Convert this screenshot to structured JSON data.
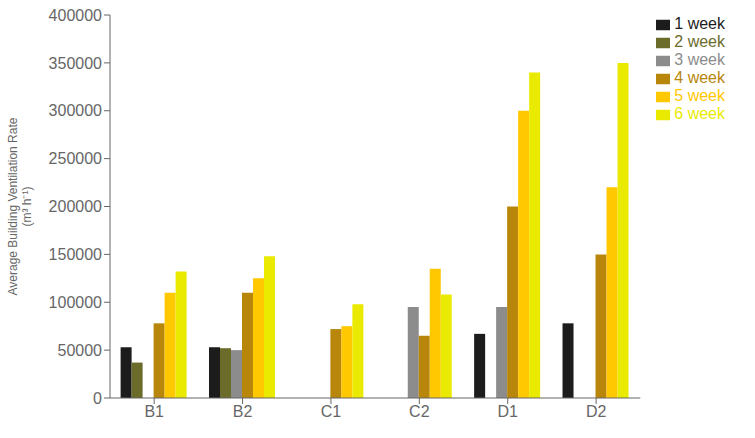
{
  "chart_data": {
    "type": "bar",
    "categories": [
      "B1",
      "B2",
      "C1",
      "C2",
      "D1",
      "D2"
    ],
    "series": [
      {
        "name": "1 week",
        "color": "#1c1c1c",
        "values": [
          53000,
          53000,
          0,
          0,
          67000,
          78000
        ]
      },
      {
        "name": "2 week",
        "color": "#6b6b2a",
        "values": [
          37000,
          52000,
          0,
          0,
          0,
          0
        ]
      },
      {
        "name": "3 week",
        "color": "#8c8c8c",
        "values": [
          0,
          50000,
          0,
          95000,
          95000,
          0
        ]
      },
      {
        "name": "4 week",
        "color": "#b8860b",
        "values": [
          78000,
          110000,
          72000,
          65000,
          200000,
          150000
        ]
      },
      {
        "name": "5 week",
        "color": "#ffc800",
        "values": [
          110000,
          125000,
          75000,
          135000,
          300000,
          220000
        ]
      },
      {
        "name": "6 week",
        "color": "#eaea00",
        "values": [
          132000,
          148000,
          98000,
          108000,
          340000,
          350000
        ]
      }
    ],
    "ylabel": "Average Building Ventilation Rate\n(m³ h⁻¹)",
    "ylim": [
      0,
      400000
    ],
    "yticks": [
      0,
      50000,
      100000,
      150000,
      200000,
      250000,
      300000,
      350000,
      400000
    ],
    "grid": false,
    "legend": "right"
  }
}
